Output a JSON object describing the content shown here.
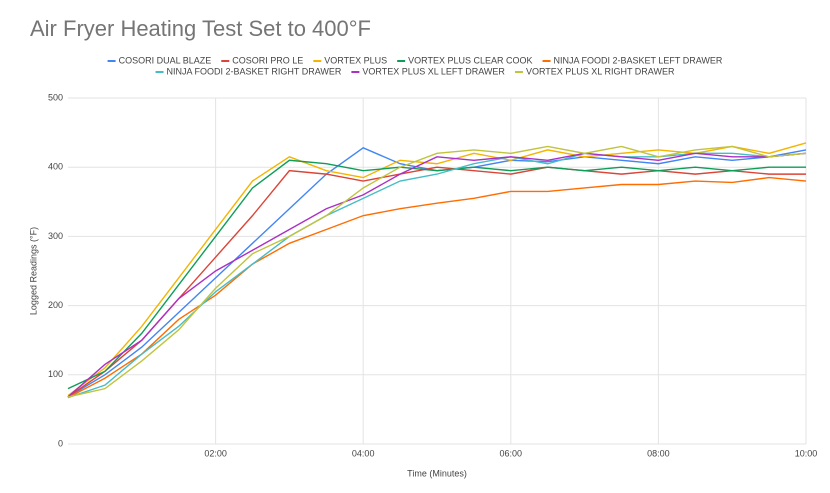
{
  "chart_data": {
    "type": "line",
    "title": "Air Fryer Heating Test Set to 400°F",
    "x_label": "Time (Minutes)",
    "y_label": "Logged Readings (°F)",
    "x": [
      0,
      0.5,
      1,
      1.5,
      2,
      2.5,
      3,
      3.5,
      4,
      4.5,
      5,
      5.5,
      6,
      6.5,
      7,
      7.5,
      8,
      8.5,
      9,
      9.5,
      10
    ],
    "xlim": [
      0,
      10
    ],
    "xticks": [
      {
        "value": 2,
        "label": "02:00"
      },
      {
        "value": 4,
        "label": "04:00"
      },
      {
        "value": 6,
        "label": "06:00"
      },
      {
        "value": 8,
        "label": "08:00"
      },
      {
        "value": 10,
        "label": "10:00"
      }
    ],
    "ylim": [
      0,
      500
    ],
    "yticks": [
      0,
      100,
      200,
      300,
      400,
      500
    ],
    "grid": true,
    "legend": "top",
    "series": [
      {
        "name": "COSORI DUAL BLAZE",
        "color": "#4285f4",
        "values": [
          68,
          100,
          140,
          190,
          240,
          290,
          340,
          390,
          428,
          405,
          395,
          400,
          410,
          408,
          415,
          410,
          405,
          415,
          410,
          415,
          425
        ]
      },
      {
        "name": "COSORI PRO LE",
        "color": "#db4437",
        "values": [
          68,
          105,
          150,
          210,
          270,
          330,
          395,
          390,
          380,
          390,
          400,
          395,
          390,
          400,
          395,
          390,
          395,
          390,
          395,
          390,
          390
        ]
      },
      {
        "name": "VORTEX PLUS",
        "color": "#f4b400",
        "values": [
          70,
          110,
          170,
          240,
          310,
          380,
          415,
          395,
          385,
          410,
          405,
          420,
          410,
          425,
          415,
          420,
          425,
          420,
          430,
          420,
          435
        ]
      },
      {
        "name": "VORTEX PLUS CLEAR COOK",
        "color": "#0f9d58",
        "values": [
          80,
          105,
          160,
          230,
          300,
          370,
          410,
          405,
          395,
          400,
          395,
          400,
          395,
          400,
          395,
          400,
          395,
          400,
          395,
          400,
          400
        ]
      },
      {
        "name": "NINJA FOODI 2-BASKET LEFT DRAWER",
        "color": "#ff6d01",
        "values": [
          67,
          95,
          130,
          180,
          215,
          260,
          290,
          310,
          330,
          340,
          348,
          355,
          365,
          365,
          370,
          375,
          375,
          380,
          378,
          385,
          380
        ]
      },
      {
        "name": "NINJA FOODI 2-BASKET RIGHT DRAWER",
        "color": "#46bdc6",
        "values": [
          67,
          85,
          130,
          170,
          220,
          260,
          300,
          330,
          355,
          380,
          390,
          405,
          415,
          405,
          420,
          415,
          415,
          420,
          420,
          415,
          420
        ]
      },
      {
        "name": "VORTEX PLUS XL LEFT DRAWER",
        "color": "#ab30c4",
        "values": [
          68,
          115,
          150,
          210,
          250,
          280,
          310,
          340,
          360,
          390,
          415,
          410,
          415,
          410,
          420,
          415,
          410,
          420,
          415,
          415,
          420
        ]
      },
      {
        "name": "VORTEX PLUS XL RIGHT DRAWER",
        "color": "#c0c43c",
        "values": [
          68,
          80,
          120,
          165,
          225,
          275,
          300,
          330,
          370,
          400,
          420,
          425,
          420,
          430,
          420,
          430,
          415,
          425,
          430,
          415,
          420
        ]
      }
    ]
  }
}
